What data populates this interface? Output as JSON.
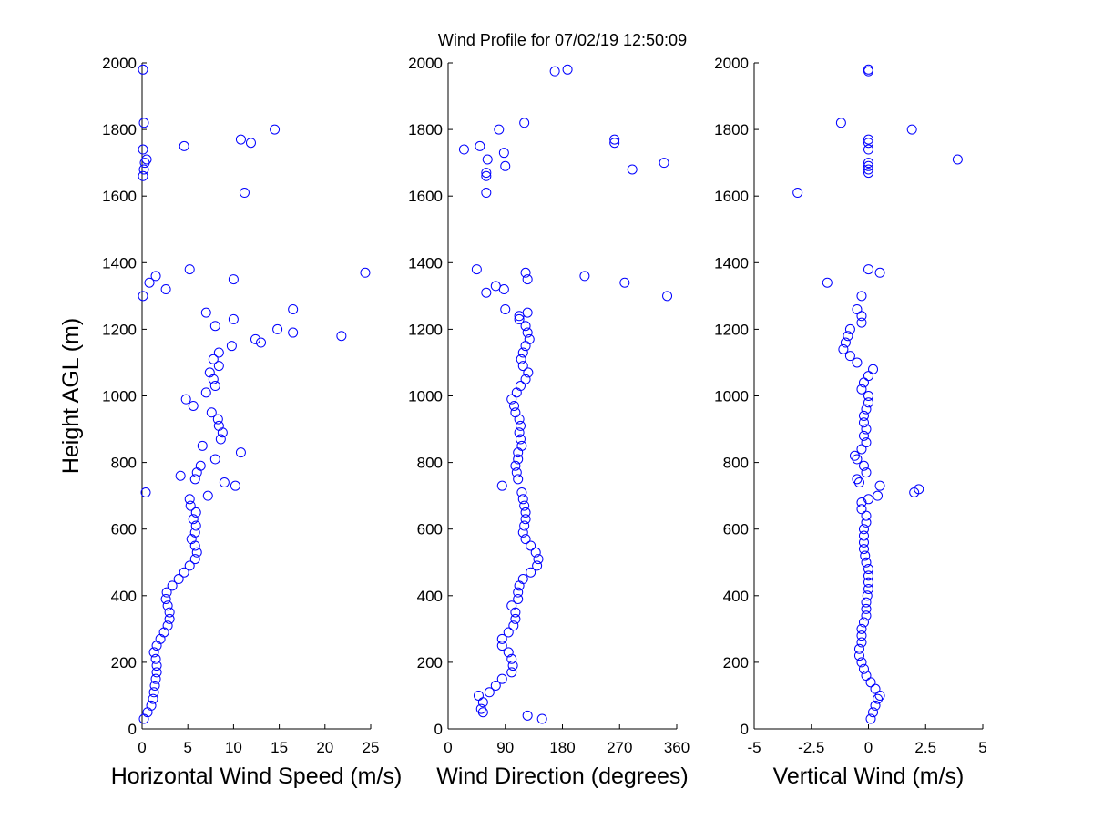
{
  "chart_data": [
    {
      "type": "scatter",
      "xlabel": "Horizontal Wind Speed (m/s)",
      "ylabel": "Height AGL (m)",
      "color": "#0000ff",
      "xlim": [
        0,
        25
      ],
      "xticks": [
        0,
        5,
        10,
        15,
        20,
        25
      ],
      "ylim": [
        0,
        2000
      ],
      "yticks": [
        0,
        200,
        400,
        600,
        800,
        1000,
        1200,
        1400,
        1600,
        1800,
        2000
      ],
      "y": [
        30,
        50,
        70,
        90,
        110,
        130,
        150,
        170,
        190,
        210,
        230,
        250,
        270,
        290,
        310,
        330,
        350,
        370,
        390,
        410,
        430,
        450,
        470,
        490,
        510,
        530,
        550,
        570,
        590,
        610,
        630,
        650,
        670,
        690,
        710,
        730,
        750,
        770,
        790,
        810,
        830,
        850,
        870,
        890,
        910,
        930,
        950,
        970,
        990,
        1010,
        1030,
        1050,
        1070,
        1090,
        1110,
        1130,
        1150,
        1170,
        1190,
        1210,
        1230,
        1250,
        1200,
        1180,
        1160,
        1260,
        760,
        740,
        700,
        1350,
        1370,
        1300,
        1320,
        1340,
        1360,
        1380,
        1610,
        1660,
        1680,
        1700,
        1710,
        1740,
        1750,
        1760,
        1770,
        1800,
        1820,
        1980
      ],
      "x": [
        0.2,
        0.6,
        1.0,
        1.2,
        1.3,
        1.4,
        1.5,
        1.6,
        1.6,
        1.5,
        1.3,
        1.6,
        2.0,
        2.4,
        2.8,
        3.0,
        3.0,
        2.8,
        2.6,
        2.7,
        3.3,
        4.0,
        4.6,
        5.2,
        5.8,
        6.0,
        5.8,
        5.4,
        5.8,
        5.9,
        5.6,
        5.9,
        5.3,
        5.2,
        0.4,
        10.2,
        5.8,
        6.0,
        6.4,
        8.0,
        10.8,
        6.6,
        8.6,
        8.8,
        8.4,
        8.3,
        7.6,
        5.6,
        4.8,
        7.0,
        8.0,
        7.8,
        7.4,
        8.4,
        7.8,
        8.4,
        9.8,
        12.4,
        16.5,
        8.0,
        10.0,
        7.0,
        14.8,
        21.8,
        13.0,
        16.5,
        4.2,
        9.0,
        7.2,
        10.0,
        24.4,
        0.1,
        2.6,
        0.8,
        1.5,
        5.2,
        11.2,
        0.1,
        0.2,
        0.3,
        0.5,
        0.1,
        4.6,
        11.9,
        10.8,
        14.5,
        0.2,
        0.1
      ]
    },
    {
      "type": "scatter",
      "title": "Wind Profile for  07/02/19 12:50:09",
      "xlabel": "Wind Direction (degrees)",
      "color": "#0000ff",
      "xlim": [
        0,
        360
      ],
      "xticks": [
        0,
        90,
        180,
        270,
        360
      ],
      "ylim": [
        0,
        2000
      ],
      "yticks": [
        0,
        200,
        400,
        600,
        800,
        1000,
        1200,
        1400,
        1600,
        1800,
        2000
      ],
      "y": [
        30,
        40,
        50,
        60,
        80,
        100,
        110,
        130,
        150,
        170,
        190,
        210,
        230,
        250,
        270,
        290,
        310,
        330,
        350,
        370,
        390,
        410,
        430,
        450,
        470,
        490,
        510,
        530,
        550,
        570,
        590,
        610,
        630,
        650,
        670,
        690,
        710,
        730,
        750,
        770,
        790,
        810,
        830,
        850,
        870,
        890,
        910,
        930,
        950,
        970,
        990,
        1010,
        1030,
        1050,
        1070,
        1090,
        1110,
        1130,
        1150,
        1170,
        1190,
        1210,
        1230,
        1250,
        1260,
        1240,
        1300,
        1310,
        1320,
        1330,
        1340,
        1350,
        1360,
        1370,
        1380,
        1610,
        1660,
        1670,
        1690,
        1700,
        1710,
        1730,
        1740,
        1750,
        1760,
        1770,
        1680,
        1800,
        1820,
        1975,
        1980
      ],
      "x": [
        148,
        125,
        55,
        52,
        55,
        48,
        65,
        75,
        85,
        100,
        102,
        100,
        95,
        85,
        85,
        95,
        103,
        106,
        106,
        100,
        110,
        110,
        112,
        118,
        130,
        140,
        142,
        138,
        130,
        122,
        118,
        120,
        122,
        122,
        120,
        118,
        116,
        85,
        110,
        108,
        106,
        110,
        110,
        116,
        114,
        112,
        114,
        112,
        106,
        104,
        100,
        108,
        114,
        122,
        126,
        118,
        115,
        118,
        122,
        128,
        125,
        122,
        112,
        125,
        90,
        112,
        345,
        60,
        88,
        75,
        278,
        125,
        215,
        122,
        45,
        60,
        60,
        60,
        90,
        340,
        62,
        88,
        25,
        50,
        262,
        262,
        290,
        80,
        120,
        168,
        188
      ]
    },
    {
      "type": "scatter",
      "xlabel": "Vertical Wind (m/s)",
      "color": "#0000ff",
      "xlim": [
        -5,
        5
      ],
      "xticks": [
        -5,
        -2.5,
        0,
        2.5,
        5
      ],
      "ylim": [
        0,
        2000
      ],
      "yticks": [
        0,
        200,
        400,
        600,
        800,
        1000,
        1200,
        1400,
        1600,
        1800,
        2000
      ],
      "y": [
        30,
        50,
        70,
        90,
        100,
        120,
        140,
        160,
        180,
        200,
        220,
        240,
        260,
        280,
        300,
        320,
        340,
        360,
        380,
        400,
        420,
        440,
        460,
        480,
        500,
        520,
        540,
        560,
        580,
        600,
        620,
        640,
        660,
        680,
        690,
        700,
        710,
        720,
        730,
        740,
        750,
        770,
        790,
        810,
        820,
        840,
        860,
        880,
        900,
        920,
        940,
        960,
        980,
        1000,
        1020,
        1040,
        1060,
        1080,
        1100,
        1120,
        1140,
        1160,
        1180,
        1200,
        1220,
        1240,
        1260,
        1300,
        1340,
        1370,
        1380,
        1610,
        1670,
        1680,
        1690,
        1700,
        1710,
        1740,
        1760,
        1770,
        1800,
        1820,
        1975,
        1980
      ],
      "x": [
        0.1,
        0.2,
        0.3,
        0.4,
        0.5,
        0.3,
        0.1,
        -0.1,
        -0.2,
        -0.3,
        -0.4,
        -0.4,
        -0.3,
        -0.3,
        -0.3,
        -0.2,
        -0.1,
        -0.1,
        -0.1,
        -0.05,
        0,
        0,
        0,
        0,
        -0.1,
        -0.15,
        -0.2,
        -0.2,
        -0.2,
        -0.2,
        -0.1,
        -0.1,
        -0.3,
        -0.3,
        0,
        0.4,
        2.0,
        2.2,
        0.5,
        -0.4,
        -0.5,
        -0.1,
        -0.2,
        -0.5,
        -0.6,
        -0.3,
        -0.1,
        -0.2,
        -0.1,
        -0.2,
        -0.2,
        -0.1,
        0,
        0,
        -0.3,
        -0.2,
        0,
        0.2,
        -0.5,
        -0.8,
        -1.1,
        -1.0,
        -0.9,
        -0.8,
        -0.3,
        -0.3,
        -0.5,
        -0.3,
        -1.8,
        0.5,
        0,
        -3.1,
        0,
        0,
        0,
        0,
        3.9,
        0,
        0,
        0,
        1.9,
        -1.2,
        0,
        0
      ]
    }
  ]
}
